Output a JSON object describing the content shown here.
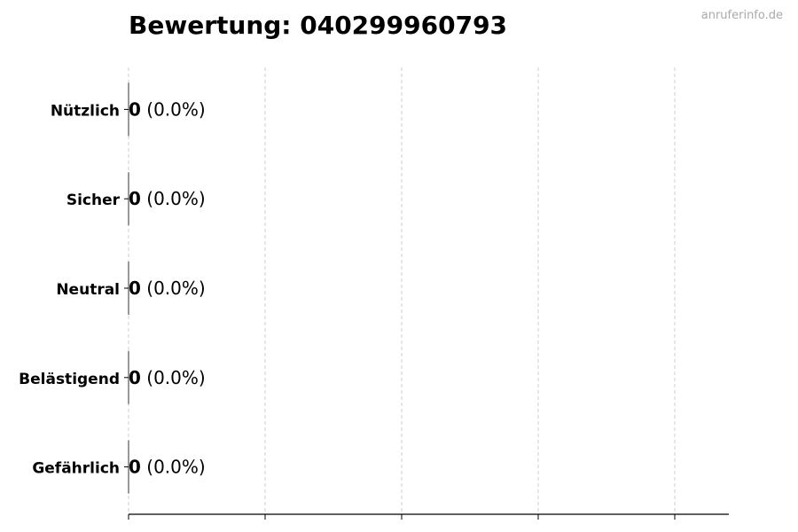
{
  "chart_data": {
    "type": "bar",
    "orientation": "horizontal",
    "title": "Bewertung: 040299960793",
    "categories": [
      "Nützlich",
      "Sicher",
      "Neutral",
      "Belästigend",
      "Gefährlich"
    ],
    "values": [
      0,
      0,
      0,
      0,
      0
    ],
    "value_labels": [
      {
        "count": "0",
        "percent": "(0.0%)"
      },
      {
        "count": "0",
        "percent": "(0.0%)"
      },
      {
        "count": "0",
        "percent": "(0.0%)"
      },
      {
        "count": "0",
        "percent": "(0.0%)"
      },
      {
        "count": "0",
        "percent": "(0.0%)"
      }
    ],
    "xlabel": "",
    "ylabel": "",
    "grid": "vertical dashed",
    "x_tick_labels_shown": false
  },
  "watermark": "anruferinfo.de",
  "colors": {
    "grid": "#cccccc",
    "axis": "#000000",
    "watermark": "#aaaaaa"
  }
}
